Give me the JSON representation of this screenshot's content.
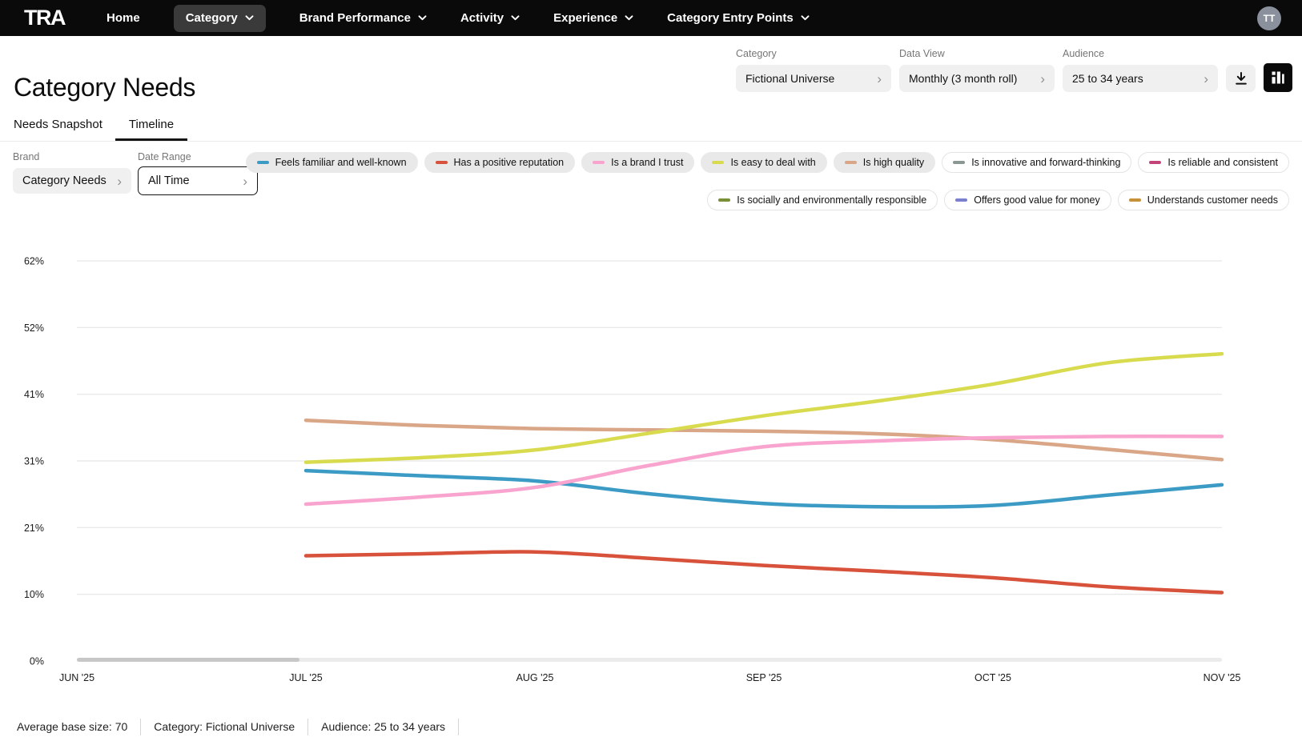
{
  "nav": {
    "logo": "TRA",
    "items": [
      {
        "label": "Home",
        "dropdown": false,
        "active": false
      },
      {
        "label": "Category",
        "dropdown": true,
        "active": true
      },
      {
        "label": "Brand Performance",
        "dropdown": true,
        "active": false
      },
      {
        "label": "Activity",
        "dropdown": true,
        "active": false
      },
      {
        "label": "Experience",
        "dropdown": true,
        "active": false
      },
      {
        "label": "Category Entry Points",
        "dropdown": true,
        "active": false
      }
    ],
    "avatar_initials": "TT"
  },
  "header": {
    "title": "Category Needs",
    "filters": [
      {
        "label": "Category",
        "value": "Fictional Universe"
      },
      {
        "label": "Data View",
        "value": "Monthly (3 month roll)"
      },
      {
        "label": "Audience",
        "value": "25 to 34 years"
      }
    ]
  },
  "icons": {
    "chevron_right_char": "›",
    "download": "download-icon",
    "chart_view": "bar-chart-icon"
  },
  "tabs": [
    {
      "label": "Needs Snapshot",
      "active": false
    },
    {
      "label": "Timeline",
      "active": true
    }
  ],
  "controls": {
    "brand_label": "Brand",
    "brand_value": "Category Needs",
    "date_label": "Date Range",
    "date_value": "All Time"
  },
  "legend": {
    "rows": [
      [
        {
          "label": "Feels familiar and well-known",
          "color": "#3B9BC5",
          "active": true
        },
        {
          "label": "Has a positive reputation",
          "color": "#D8523B",
          "active": true
        },
        {
          "label": "Is a brand I trust",
          "color": "#F9A4CE",
          "active": true
        },
        {
          "label": "Is easy to deal with",
          "color": "#D9DB4F",
          "active": true
        },
        {
          "label": "Is high quality",
          "color": "#D9A687",
          "active": true
        },
        {
          "label": "Is innovative and forward-thinking",
          "color": "#8B9793",
          "active": false
        },
        {
          "label": "Is reliable and consistent",
          "color": "#C34479",
          "active": false
        }
      ],
      [
        {
          "label": "Is socially and environmentally responsible",
          "color": "#7A9038",
          "active": false
        },
        {
          "label": "Offers good value for money",
          "color": "#7B7FD0",
          "active": false
        },
        {
          "label": "Understands customer needs",
          "color": "#C69138",
          "active": false
        }
      ]
    ]
  },
  "chart_data": {
    "type": "line",
    "title": "Category Needs Timeline",
    "unit": "%",
    "grid": true,
    "legend_position": "top-right",
    "x_tick_labels": [
      "JUN '25",
      "JUL '25",
      "AUG '25",
      "SEP '25",
      "OCT '25",
      "NOV '25"
    ],
    "x_tick_positions": [
      0,
      1,
      2,
      3,
      4,
      5
    ],
    "y_tick_labels": [
      "62%",
      "52%",
      "41%",
      "31%",
      "21%",
      "10%",
      "0%"
    ],
    "y_tick_values": [
      62,
      51.67,
      41.33,
      31,
      20.67,
      10.33,
      0
    ],
    "x_range": [
      0,
      5
    ],
    "y_range": [
      0,
      62
    ],
    "x": [
      1,
      1.5,
      2,
      2.5,
      3,
      3.5,
      4,
      4.5,
      5
    ],
    "series": [
      {
        "name": "Is high quality",
        "color": "#D9A687",
        "values": [
          37.3,
          36.5,
          36.0,
          35.8,
          35.6,
          35.2,
          34.3,
          32.8,
          31.2
        ]
      },
      {
        "name": "Is easy to deal with",
        "color": "#D9DB4F",
        "values": [
          30.8,
          31.5,
          32.7,
          35.3,
          38.0,
          40.3,
          42.9,
          46.2,
          47.6
        ]
      },
      {
        "name": "Feels familiar and well-known",
        "color": "#3B9BC5",
        "values": [
          29.5,
          28.7,
          27.9,
          25.9,
          24.4,
          23.9,
          24.1,
          25.7,
          27.3
        ]
      },
      {
        "name": "Is a brand I trust",
        "color": "#F9A4CE",
        "values": [
          24.3,
          25.4,
          26.9,
          30.3,
          33.2,
          34.1,
          34.6,
          34.8,
          34.8
        ]
      },
      {
        "name": "Has a positive reputation",
        "color": "#D8523B",
        "values": [
          16.3,
          16.6,
          16.9,
          15.9,
          14.8,
          13.9,
          12.9,
          11.5,
          10.6
        ]
      }
    ]
  },
  "footer": {
    "items": [
      "Average base size: 70",
      "Category: Fictional Universe",
      "Audience: 25 to 34 years"
    ]
  }
}
